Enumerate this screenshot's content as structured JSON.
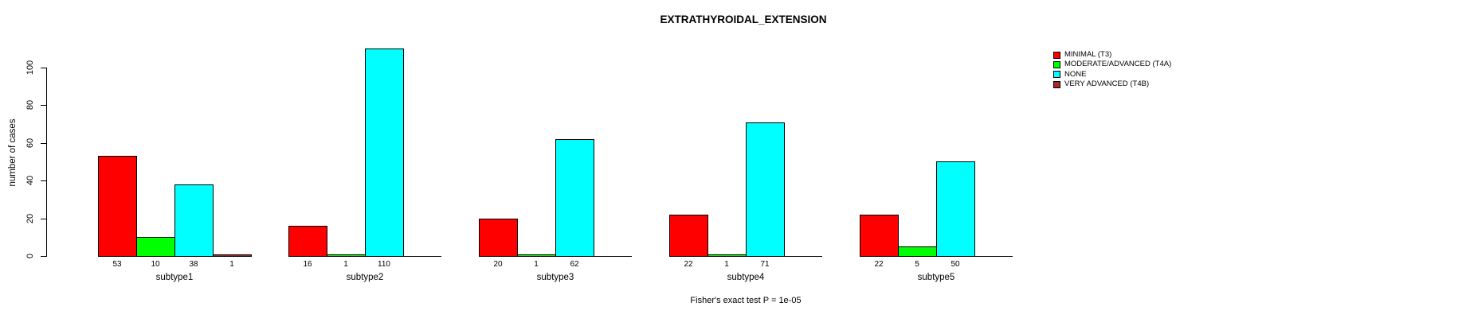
{
  "chart_data": {
    "type": "bar",
    "title": "EXTRATHYROIDAL_EXTENSION",
    "ylabel": "number of cases",
    "xlabel": "",
    "ylim": [
      0,
      113
    ],
    "yticks": [
      0,
      20,
      40,
      60,
      80,
      100
    ],
    "grid": false,
    "legend_position": "right-inside",
    "categories": [
      "subtype1",
      "subtype2",
      "subtype3",
      "subtype4",
      "subtype5"
    ],
    "series": [
      {
        "name": "MINIMAL (T3)",
        "color": "#FF0000",
        "values": [
          53,
          16,
          20,
          22,
          22
        ]
      },
      {
        "name": "MODERATE/ADVANCED (T4A)",
        "color": "#00FF00",
        "values": [
          10,
          1,
          1,
          1,
          5
        ]
      },
      {
        "name": "NONE",
        "color": "#00FFFF",
        "values": [
          38,
          110,
          62,
          71,
          50
        ]
      },
      {
        "name": "VERY ADVANCED (T4B)",
        "color": "#A52A2A",
        "values": [
          1,
          0,
          0,
          0,
          0
        ]
      }
    ],
    "value_labels": [
      [
        "53",
        "10",
        "38",
        "1"
      ],
      [
        "16",
        "1",
        "110",
        ""
      ],
      [
        "20",
        "1",
        "62",
        ""
      ],
      [
        "22",
        "1",
        "71",
        ""
      ],
      [
        "22",
        "5",
        "50",
        ""
      ]
    ],
    "annotation": "Fisher's exact test P = 1e-05"
  }
}
